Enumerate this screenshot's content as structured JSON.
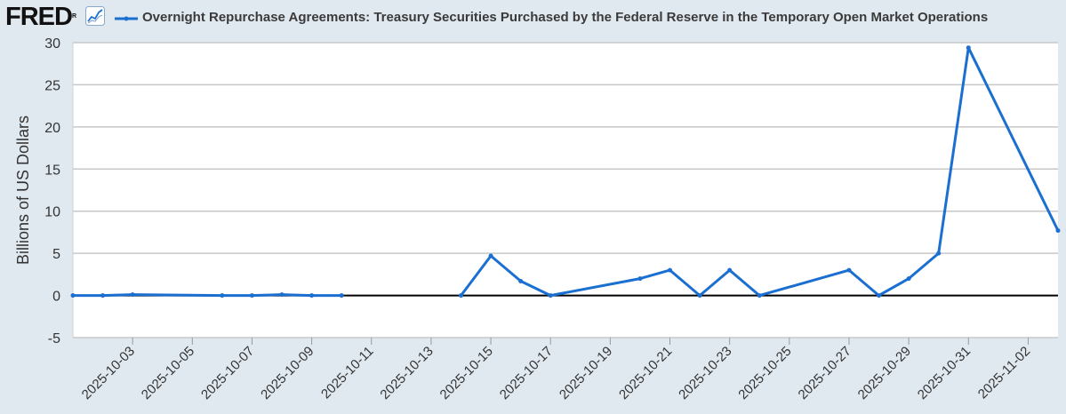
{
  "header": {
    "logo_text": "FRED",
    "logo_mark": "R",
    "logo_icon": "line-chart-icon",
    "series_title": "Overnight Repurchase Agreements: Treasury Securities Purchased by the Federal Reserve in the Temporary Open Market Operations"
  },
  "colors": {
    "background": "#e1e9f0",
    "plot_background": "#ffffff",
    "series": "#1a6fd1",
    "grid": "#c8c8c8",
    "zero_line": "#000000"
  },
  "chart_data": {
    "type": "line",
    "title": "Overnight Repurchase Agreements: Treasury Securities Purchased by the Federal Reserve in the Temporary Open Market Operations",
    "xlabel": "",
    "ylabel": "Billions of US Dollars",
    "ylim": [
      -5,
      30
    ],
    "xlim": [
      "2025-10-01",
      "2025-11-03"
    ],
    "grid": true,
    "yticks": [
      -5,
      0,
      5,
      10,
      15,
      20,
      25,
      30
    ],
    "ytick_labels": [
      "-5",
      "0",
      "5",
      "10",
      "15",
      "20",
      "25",
      "30"
    ],
    "xticks": [
      "2025-10-03",
      "2025-10-05",
      "2025-10-07",
      "2025-10-09",
      "2025-10-11",
      "2025-10-13",
      "2025-10-15",
      "2025-10-17",
      "2025-10-19",
      "2025-10-21",
      "2025-10-23",
      "2025-10-25",
      "2025-10-27",
      "2025-10-29",
      "2025-10-31",
      "2025-11-02"
    ],
    "series": [
      {
        "name": "Overnight Repurchase Agreements: Treasury Securities Purchased by the Federal Reserve in the Temporary Open Market Operations",
        "segments": [
          {
            "x": [
              "2025-10-01",
              "2025-10-02",
              "2025-10-03",
              "2025-10-06",
              "2025-10-07",
              "2025-10-08",
              "2025-10-09",
              "2025-10-10"
            ],
            "values": [
              0.0,
              0.0,
              0.1,
              0.0,
              0.0,
              0.1,
              0.0,
              0.0
            ]
          },
          {
            "x": [
              "2025-10-14",
              "2025-10-15",
              "2025-10-16",
              "2025-10-17",
              "2025-10-20",
              "2025-10-21",
              "2025-10-22",
              "2025-10-23",
              "2025-10-24",
              "2025-10-27",
              "2025-10-28",
              "2025-10-29",
              "2025-10-30",
              "2025-10-31",
              "2025-11-03"
            ],
            "values": [
              0.0,
              4.7,
              1.7,
              0.0,
              2.0,
              3.0,
              0.0,
              3.0,
              0.0,
              3.0,
              0.0,
              2.0,
              5.0,
              29.4,
              7.7
            ]
          }
        ]
      }
    ]
  }
}
